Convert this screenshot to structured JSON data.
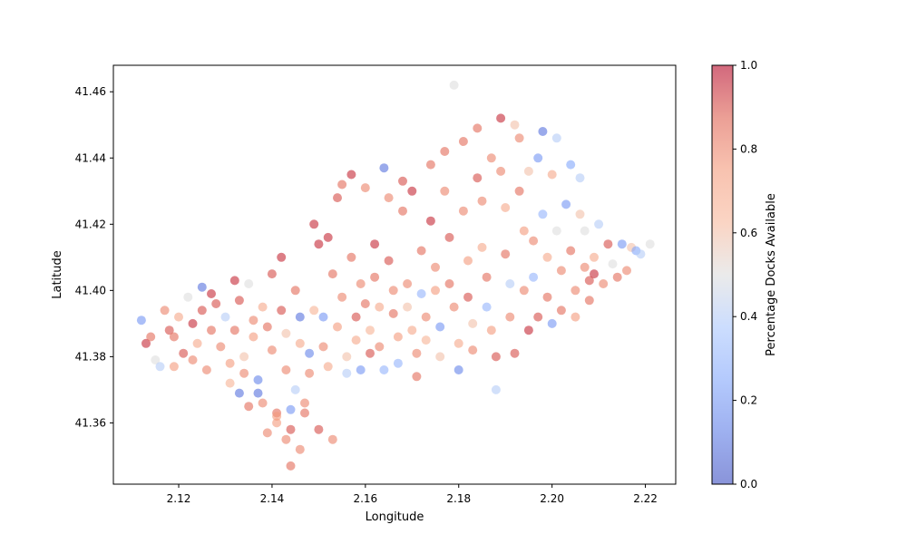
{
  "chart_data": {
    "type": "scatter",
    "title": "",
    "xlabel": "Longitude",
    "ylabel": "Latitude",
    "xlim": [
      2.106,
      2.2265
    ],
    "ylim": [
      41.3415,
      41.468
    ],
    "x_ticks": [
      2.12,
      2.14,
      2.16,
      2.18,
      2.2,
      2.22
    ],
    "x_tick_labels": [
      "2.12",
      "2.14",
      "2.16",
      "2.18",
      "2.20",
      "2.22"
    ],
    "y_ticks": [
      41.36,
      41.38,
      41.4,
      41.42,
      41.44,
      41.46
    ],
    "y_tick_labels": [
      "41.36",
      "41.38",
      "41.40",
      "41.42",
      "41.44",
      "41.46"
    ],
    "grid": false,
    "legend": "none",
    "colorbar": {
      "label": "Percentage Docks Available",
      "range": [
        0,
        1
      ],
      "ticks": [
        0.0,
        0.2,
        0.4,
        0.6,
        0.8,
        1.0
      ],
      "tick_labels": [
        "0.0",
        "0.2",
        "0.4",
        "0.6",
        "0.8",
        "1.0"
      ],
      "colormap": "coolwarm",
      "alpha": 0.6
    },
    "colors": {
      "low": "#3b4cc0",
      "mid": "#dddddd",
      "high": "#b40426"
    },
    "points": [
      [
        2.112,
        41.391,
        0.2
      ],
      [
        2.113,
        41.384,
        0.95
      ],
      [
        2.114,
        41.386,
        0.85
      ],
      [
        2.115,
        41.379,
        0.5
      ],
      [
        2.116,
        41.377,
        0.4
      ],
      [
        2.117,
        41.394,
        0.8
      ],
      [
        2.118,
        41.388,
        0.9
      ],
      [
        2.119,
        41.386,
        0.85
      ],
      [
        2.119,
        41.377,
        0.75
      ],
      [
        2.12,
        41.392,
        0.7
      ],
      [
        2.121,
        41.381,
        0.9
      ],
      [
        2.122,
        41.398,
        0.5
      ],
      [
        2.123,
        41.39,
        0.95
      ],
      [
        2.123,
        41.379,
        0.8
      ],
      [
        2.124,
        41.384,
        0.7
      ],
      [
        2.125,
        41.401,
        0.1
      ],
      [
        2.125,
        41.394,
        0.9
      ],
      [
        2.126,
        41.376,
        0.8
      ],
      [
        2.127,
        41.388,
        0.85
      ],
      [
        2.127,
        41.399,
        0.95
      ],
      [
        2.128,
        41.396,
        0.9
      ],
      [
        2.129,
        41.383,
        0.8
      ],
      [
        2.13,
        41.392,
        0.4
      ],
      [
        2.131,
        41.378,
        0.75
      ],
      [
        2.131,
        41.372,
        0.65
      ],
      [
        2.132,
        41.403,
        0.95
      ],
      [
        2.132,
        41.388,
        0.85
      ],
      [
        2.133,
        41.397,
        0.9
      ],
      [
        2.134,
        41.38,
        0.6
      ],
      [
        2.134,
        41.375,
        0.8
      ],
      [
        2.135,
        41.402,
        0.5
      ],
      [
        2.136,
        41.391,
        0.8
      ],
      [
        2.136,
        41.386,
        0.75
      ],
      [
        2.137,
        41.373,
        0.15
      ],
      [
        2.137,
        41.369,
        0.1
      ],
      [
        2.138,
        41.366,
        0.8
      ],
      [
        2.138,
        41.395,
        0.7
      ],
      [
        2.139,
        41.389,
        0.85
      ],
      [
        2.14,
        41.382,
        0.8
      ],
      [
        2.14,
        41.405,
        0.9
      ],
      [
        2.141,
        41.363,
        0.85
      ],
      [
        2.141,
        41.362,
        0.75
      ],
      [
        2.142,
        41.394,
        0.9
      ],
      [
        2.142,
        41.41,
        0.95
      ],
      [
        2.143,
        41.387,
        0.6
      ],
      [
        2.143,
        41.376,
        0.8
      ],
      [
        2.144,
        41.364,
        0.2
      ],
      [
        2.144,
        41.358,
        0.9
      ],
      [
        2.145,
        41.37,
        0.4
      ],
      [
        2.145,
        41.4,
        0.85
      ],
      [
        2.146,
        41.392,
        0.1
      ],
      [
        2.146,
        41.384,
        0.7
      ],
      [
        2.147,
        41.366,
        0.8
      ],
      [
        2.147,
        41.363,
        0.85
      ],
      [
        2.148,
        41.381,
        0.15
      ],
      [
        2.148,
        41.375,
        0.8
      ],
      [
        2.149,
        41.394,
        0.65
      ],
      [
        2.149,
        41.42,
        0.95
      ],
      [
        2.15,
        41.414,
        0.95
      ],
      [
        2.15,
        41.358,
        0.9
      ],
      [
        2.151,
        41.392,
        0.2
      ],
      [
        2.151,
        41.383,
        0.8
      ],
      [
        2.152,
        41.377,
        0.7
      ],
      [
        2.152,
        41.416,
        0.95
      ],
      [
        2.153,
        41.405,
        0.85
      ],
      [
        2.153,
        41.355,
        0.8
      ],
      [
        2.154,
        41.389,
        0.75
      ],
      [
        2.154,
        41.428,
        0.9
      ],
      [
        2.155,
        41.432,
        0.85
      ],
      [
        2.155,
        41.398,
        0.8
      ],
      [
        2.156,
        41.38,
        0.6
      ],
      [
        2.156,
        41.375,
        0.4
      ],
      [
        2.157,
        41.435,
        0.95
      ],
      [
        2.157,
        41.41,
        0.85
      ],
      [
        2.158,
        41.392,
        0.9
      ],
      [
        2.158,
        41.385,
        0.7
      ],
      [
        2.159,
        41.402,
        0.8
      ],
      [
        2.159,
        41.376,
        0.2
      ],
      [
        2.16,
        41.431,
        0.8
      ],
      [
        2.16,
        41.396,
        0.85
      ],
      [
        2.161,
        41.388,
        0.65
      ],
      [
        2.161,
        41.381,
        0.9
      ],
      [
        2.162,
        41.414,
        0.95
      ],
      [
        2.162,
        41.404,
        0.85
      ],
      [
        2.163,
        41.395,
        0.7
      ],
      [
        2.163,
        41.383,
        0.8
      ],
      [
        2.164,
        41.376,
        0.3
      ],
      [
        2.164,
        41.437,
        0.1
      ],
      [
        2.165,
        41.428,
        0.8
      ],
      [
        2.165,
        41.409,
        0.9
      ],
      [
        2.166,
        41.4,
        0.8
      ],
      [
        2.166,
        41.393,
        0.85
      ],
      [
        2.167,
        41.386,
        0.75
      ],
      [
        2.167,
        41.378,
        0.3
      ],
      [
        2.168,
        41.433,
        0.9
      ],
      [
        2.168,
        41.424,
        0.85
      ],
      [
        2.169,
        41.402,
        0.8
      ],
      [
        2.169,
        41.395,
        0.6
      ],
      [
        2.17,
        41.43,
        0.95
      ],
      [
        2.17,
        41.388,
        0.7
      ],
      [
        2.171,
        41.381,
        0.8
      ],
      [
        2.171,
        41.374,
        0.85
      ],
      [
        2.172,
        41.412,
        0.85
      ],
      [
        2.172,
        41.399,
        0.3
      ],
      [
        2.173,
        41.392,
        0.8
      ],
      [
        2.173,
        41.385,
        0.65
      ],
      [
        2.174,
        41.438,
        0.85
      ],
      [
        2.174,
        41.421,
        0.95
      ],
      [
        2.175,
        41.407,
        0.8
      ],
      [
        2.175,
        41.4,
        0.75
      ],
      [
        2.176,
        41.389,
        0.2
      ],
      [
        2.176,
        41.38,
        0.6
      ],
      [
        2.177,
        41.442,
        0.85
      ],
      [
        2.177,
        41.43,
        0.8
      ],
      [
        2.178,
        41.416,
        0.9
      ],
      [
        2.178,
        41.402,
        0.85
      ],
      [
        2.179,
        41.462,
        0.5
      ],
      [
        2.179,
        41.395,
        0.8
      ],
      [
        2.18,
        41.384,
        0.7
      ],
      [
        2.18,
        41.376,
        0.15
      ],
      [
        2.181,
        41.445,
        0.85
      ],
      [
        2.181,
        41.424,
        0.8
      ],
      [
        2.182,
        41.409,
        0.75
      ],
      [
        2.182,
        41.398,
        0.9
      ],
      [
        2.183,
        41.39,
        0.6
      ],
      [
        2.183,
        41.382,
        0.8
      ],
      [
        2.184,
        41.449,
        0.85
      ],
      [
        2.184,
        41.434,
        0.9
      ],
      [
        2.185,
        41.427,
        0.8
      ],
      [
        2.185,
        41.413,
        0.7
      ],
      [
        2.186,
        41.404,
        0.85
      ],
      [
        2.186,
        41.395,
        0.3
      ],
      [
        2.187,
        41.44,
        0.8
      ],
      [
        2.187,
        41.388,
        0.75
      ],
      [
        2.188,
        41.38,
        0.9
      ],
      [
        2.188,
        41.37,
        0.4
      ],
      [
        2.189,
        41.452,
        0.95
      ],
      [
        2.189,
        41.436,
        0.8
      ],
      [
        2.19,
        41.425,
        0.7
      ],
      [
        2.19,
        41.411,
        0.85
      ],
      [
        2.191,
        41.402,
        0.4
      ],
      [
        2.191,
        41.392,
        0.8
      ],
      [
        2.192,
        41.45,
        0.6
      ],
      [
        2.192,
        41.381,
        0.9
      ],
      [
        2.193,
        41.446,
        0.8
      ],
      [
        2.193,
        41.43,
        0.85
      ],
      [
        2.194,
        41.418,
        0.75
      ],
      [
        2.194,
        41.4,
        0.8
      ],
      [
        2.195,
        41.388,
        0.95
      ],
      [
        2.195,
        41.436,
        0.6
      ],
      [
        2.196,
        41.415,
        0.8
      ],
      [
        2.196,
        41.404,
        0.3
      ],
      [
        2.197,
        41.392,
        0.9
      ],
      [
        2.197,
        41.44,
        0.2
      ],
      [
        2.198,
        41.448,
        0.1
      ],
      [
        2.198,
        41.423,
        0.3
      ],
      [
        2.199,
        41.41,
        0.7
      ],
      [
        2.199,
        41.398,
        0.85
      ],
      [
        2.2,
        41.39,
        0.2
      ],
      [
        2.2,
        41.435,
        0.7
      ],
      [
        2.201,
        41.446,
        0.4
      ],
      [
        2.201,
        41.418,
        0.5
      ],
      [
        2.202,
        41.406,
        0.8
      ],
      [
        2.202,
        41.394,
        0.85
      ],
      [
        2.203,
        41.426,
        0.2
      ],
      [
        2.204,
        41.438,
        0.25
      ],
      [
        2.204,
        41.412,
        0.85
      ],
      [
        2.205,
        41.4,
        0.8
      ],
      [
        2.205,
        41.392,
        0.75
      ],
      [
        2.206,
        41.423,
        0.6
      ],
      [
        2.206,
        41.434,
        0.4
      ],
      [
        2.207,
        41.418,
        0.5
      ],
      [
        2.207,
        41.407,
        0.8
      ],
      [
        2.208,
        41.397,
        0.85
      ],
      [
        2.208,
        41.403,
        0.9
      ],
      [
        2.209,
        41.41,
        0.7
      ],
      [
        2.209,
        41.405,
        0.95
      ],
      [
        2.21,
        41.42,
        0.4
      ],
      [
        2.211,
        41.402,
        0.8
      ],
      [
        2.212,
        41.414,
        0.9
      ],
      [
        2.213,
        41.408,
        0.5
      ],
      [
        2.214,
        41.404,
        0.85
      ],
      [
        2.215,
        41.414,
        0.2
      ],
      [
        2.216,
        41.406,
        0.8
      ],
      [
        2.217,
        41.413,
        0.6
      ],
      [
        2.218,
        41.412,
        0.25
      ],
      [
        2.219,
        41.411,
        0.4
      ],
      [
        2.221,
        41.414,
        0.5
      ],
      [
        2.144,
        41.347,
        0.85
      ],
      [
        2.146,
        41.352,
        0.8
      ],
      [
        2.133,
        41.369,
        0.1
      ],
      [
        2.135,
        41.365,
        0.85
      ],
      [
        2.139,
        41.357,
        0.8
      ],
      [
        2.141,
        41.36,
        0.75
      ],
      [
        2.143,
        41.355,
        0.8
      ]
    ]
  }
}
